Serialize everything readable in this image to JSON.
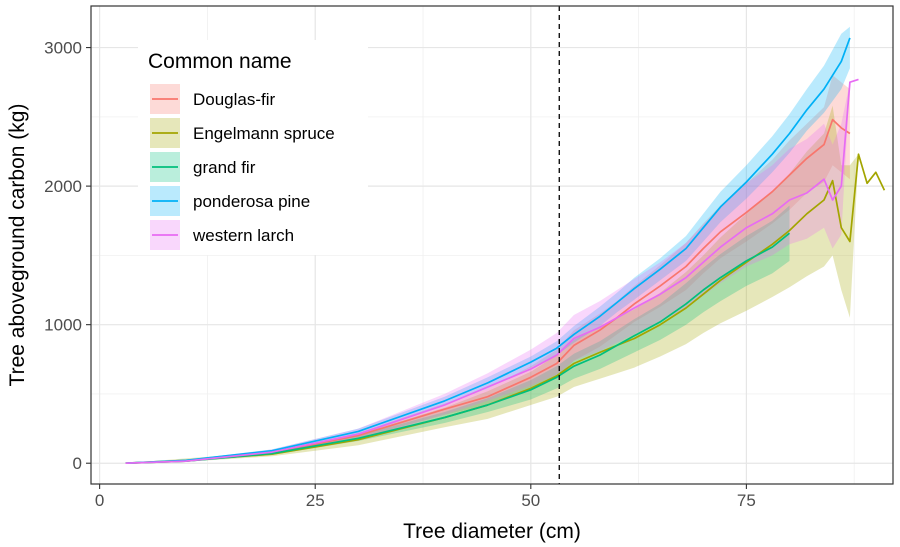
{
  "chart_data": {
    "type": "line",
    "title": "",
    "xlabel": "Tree diameter (cm)",
    "ylabel": "Tree aboveground carbon (kg)",
    "xlim": [
      -1,
      92
    ],
    "ylim": [
      -150,
      3300
    ],
    "x_ticks": [
      0,
      25,
      50,
      75
    ],
    "x_tick_labels": [
      "0",
      "25",
      "50",
      "75"
    ],
    "y_ticks": [
      0,
      1000,
      2000,
      3000
    ],
    "y_tick_labels": [
      "0",
      "1000",
      "2000",
      "3000"
    ],
    "reference_line": {
      "type": "vline",
      "x": 53.3,
      "style": "dashed"
    },
    "legend": {
      "title": "Common name",
      "position": "top-left"
    },
    "series": [
      {
        "name": "Douglas-fir",
        "color": "#F8766D",
        "x": [
          3,
          10,
          20,
          30,
          40,
          45,
          50,
          53,
          55,
          58,
          60,
          62,
          65,
          68,
          70,
          72,
          75,
          78,
          80,
          82,
          84,
          85,
          86,
          87
        ],
        "y": [
          0,
          15,
          75,
          200,
          390,
          480,
          620,
          720,
          850,
          960,
          1050,
          1150,
          1280,
          1420,
          1550,
          1670,
          1810,
          1960,
          2080,
          2200,
          2300,
          2480,
          2420,
          2380
        ],
        "lower": [
          0,
          10,
          65,
          180,
          350,
          420,
          540,
          620,
          740,
          840,
          930,
          1020,
          1130,
          1250,
          1370,
          1480,
          1600,
          1730,
          1830,
          1950,
          2030,
          2150,
          2100,
          2050
        ],
        "upper": [
          0,
          20,
          85,
          220,
          430,
          540,
          700,
          820,
          960,
          1080,
          1170,
          1280,
          1430,
          1590,
          1730,
          1860,
          2020,
          2190,
          2330,
          2450,
          2570,
          2800,
          2750,
          2700
        ]
      },
      {
        "name": "Engelmann spruce",
        "color": "#A3A500",
        "x": [
          3,
          10,
          20,
          30,
          40,
          45,
          50,
          53,
          55,
          58,
          60,
          62,
          65,
          68,
          70,
          72,
          75,
          78,
          80,
          82,
          84,
          85,
          86,
          87,
          88,
          89,
          90,
          91
        ],
        "y": [
          0,
          20,
          65,
          170,
          330,
          420,
          540,
          630,
          720,
          800,
          850,
          900,
          1000,
          1120,
          1220,
          1320,
          1450,
          1580,
          1680,
          1800,
          1900,
          2040,
          1700,
          1600,
          2230,
          2020,
          2100,
          1970
        ],
        "lower": [
          0,
          10,
          50,
          130,
          260,
          320,
          420,
          480,
          550,
          610,
          650,
          690,
          770,
          860,
          940,
          1010,
          1100,
          1200,
          1270,
          1350,
          1420,
          1500,
          1250,
          1050,
          2230,
          2020,
          2100,
          1970
        ],
        "upper": [
          0,
          35,
          80,
          210,
          400,
          520,
          660,
          780,
          890,
          990,
          1050,
          1110,
          1230,
          1380,
          1500,
          1630,
          1800,
          1960,
          2090,
          2250,
          2380,
          2580,
          2150,
          2150,
          2230,
          2020,
          2100,
          1970
        ]
      },
      {
        "name": "grand fir",
        "color": "#00BF7D",
        "x": [
          3,
          10,
          20,
          30,
          40,
          45,
          50,
          53,
          55,
          58,
          60,
          62,
          65,
          68,
          70,
          72,
          75,
          78,
          80
        ],
        "y": [
          0,
          15,
          70,
          180,
          330,
          420,
          530,
          620,
          700,
          780,
          850,
          920,
          1020,
          1150,
          1250,
          1340,
          1460,
          1560,
          1660
        ],
        "lower": [
          0,
          10,
          60,
          160,
          290,
          370,
          460,
          540,
          610,
          680,
          740,
          800,
          890,
          1000,
          1090,
          1170,
          1280,
          1370,
          1460
        ],
        "upper": [
          0,
          20,
          80,
          200,
          370,
          470,
          600,
          700,
          790,
          880,
          960,
          1040,
          1150,
          1300,
          1410,
          1510,
          1640,
          1750,
          1860
        ]
      },
      {
        "name": "ponderosa pine",
        "color": "#00B0F6",
        "x": [
          3,
          10,
          20,
          30,
          40,
          45,
          50,
          53,
          55,
          58,
          60,
          62,
          65,
          68,
          70,
          72,
          75,
          78,
          80,
          82,
          84,
          86,
          87
        ],
        "y": [
          0,
          20,
          90,
          230,
          450,
          580,
          730,
          830,
          930,
          1060,
          1160,
          1260,
          1400,
          1550,
          1700,
          1850,
          2030,
          2230,
          2380,
          2550,
          2700,
          2900,
          3070
        ],
        "lower": [
          0,
          15,
          80,
          210,
          420,
          540,
          690,
          780,
          870,
          990,
          1090,
          1180,
          1320,
          1460,
          1600,
          1740,
          1910,
          2100,
          2240,
          2400,
          2530,
          2700,
          2850
        ],
        "upper": [
          0,
          25,
          100,
          250,
          480,
          620,
          770,
          880,
          990,
          1130,
          1230,
          1340,
          1480,
          1640,
          1800,
          1960,
          2150,
          2360,
          2520,
          2700,
          2870,
          3100,
          3150
        ]
      },
      {
        "name": "western larch",
        "color": "#E76BF3",
        "x": [
          3,
          10,
          20,
          30,
          40,
          45,
          50,
          53,
          55,
          58,
          60,
          62,
          65,
          68,
          70,
          72,
          75,
          78,
          80,
          82,
          84,
          85,
          86,
          87,
          88
        ],
        "y": [
          0,
          15,
          80,
          210,
          420,
          550,
          680,
          780,
          900,
          980,
          1050,
          1120,
          1220,
          1340,
          1450,
          1560,
          1700,
          1800,
          1900,
          1950,
          2050,
          1900,
          2000,
          2750,
          2770
        ],
        "lower": [
          0,
          10,
          60,
          170,
          350,
          450,
          560,
          640,
          740,
          810,
          870,
          930,
          1020,
          1120,
          1210,
          1300,
          1420,
          1500,
          1580,
          1620,
          1700,
          1550,
          1650,
          2750,
          2770
        ],
        "upper": [
          0,
          25,
          100,
          250,
          500,
          650,
          820,
          940,
          1070,
          1170,
          1250,
          1330,
          1450,
          1590,
          1720,
          1850,
          2020,
          2150,
          2270,
          2340,
          2450,
          2300,
          2450,
          2750,
          2770
        ]
      }
    ]
  }
}
